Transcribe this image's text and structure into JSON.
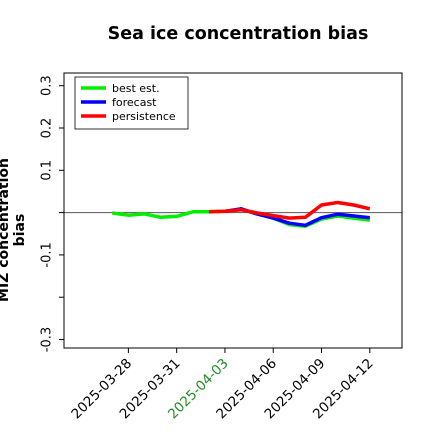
{
  "chart_data": {
    "type": "line",
    "title": "Sea ice concentration bias",
    "ylabel": "MIZ concentration bias",
    "xlabel": "",
    "ylim": [
      -0.32,
      0.33
    ],
    "yticks": [
      -0.3,
      -0.2,
      -0.1,
      0.0,
      0.1,
      0.2,
      0.3
    ],
    "ytick_labels": [
      "-0.3",
      "",
      "-0.1",
      "",
      "0.1",
      "0.2",
      "0.3"
    ],
    "x_range": [
      "2025-03-24",
      "2025-04-14"
    ],
    "xticks": [
      "2025-03-28",
      "2025-03-31",
      "2025-04-03",
      "2025-04-06",
      "2025-04-09",
      "2025-04-12"
    ],
    "highlight_tick": "2025-04-03",
    "highlight_color": "#228b22",
    "reference_line": 0,
    "legend_position": "top-left",
    "series": [
      {
        "name": "best est.",
        "color": "#00ee00",
        "points": [
          [
            "2025-03-27",
            -0.001
          ],
          [
            "2025-03-28",
            -0.006
          ],
          [
            "2025-03-29",
            -0.003
          ],
          [
            "2025-03-30",
            -0.011
          ],
          [
            "2025-03-31",
            -0.009
          ],
          [
            "2025-04-01",
            0.002
          ],
          [
            "2025-04-02",
            0.002
          ],
          [
            "2025-04-03",
            0.003
          ],
          [
            "2025-04-04",
            0.008
          ],
          [
            "2025-04-05",
            -0.003
          ],
          [
            "2025-04-06",
            -0.013
          ],
          [
            "2025-04-07",
            -0.028
          ],
          [
            "2025-04-08",
            -0.032
          ],
          [
            "2025-04-09",
            -0.015
          ],
          [
            "2025-04-10",
            -0.008
          ],
          [
            "2025-04-11",
            -0.013
          ],
          [
            "2025-04-12",
            -0.018
          ]
        ]
      },
      {
        "name": "forecast",
        "color": "#0000ff",
        "points": [
          [
            "2025-04-03",
            0.003
          ],
          [
            "2025-04-04",
            0.009
          ],
          [
            "2025-04-05",
            -0.003
          ],
          [
            "2025-04-06",
            -0.013
          ],
          [
            "2025-04-07",
            -0.025
          ],
          [
            "2025-04-08",
            -0.03
          ],
          [
            "2025-04-09",
            -0.012
          ],
          [
            "2025-04-10",
            -0.004
          ],
          [
            "2025-04-11",
            -0.008
          ],
          [
            "2025-04-12",
            -0.012
          ]
        ]
      },
      {
        "name": "persistence",
        "color": "#ff0000",
        "points": [
          [
            "2025-04-02",
            0.002
          ],
          [
            "2025-04-03",
            0.003
          ],
          [
            "2025-04-04",
            0.007
          ],
          [
            "2025-04-05",
            -0.001
          ],
          [
            "2025-04-06",
            -0.007
          ],
          [
            "2025-04-07",
            -0.013
          ],
          [
            "2025-04-08",
            -0.011
          ],
          [
            "2025-04-09",
            0.018
          ],
          [
            "2025-04-10",
            0.024
          ],
          [
            "2025-04-11",
            0.018
          ],
          [
            "2025-04-12",
            0.009
          ]
        ]
      }
    ]
  }
}
